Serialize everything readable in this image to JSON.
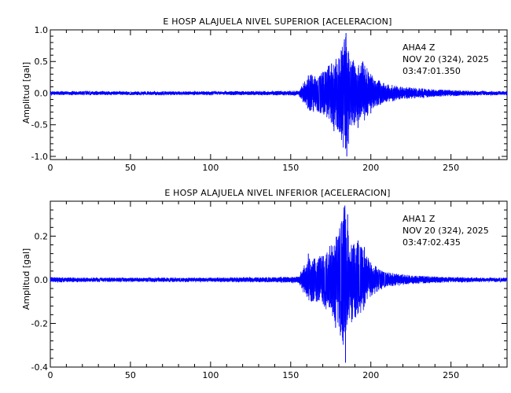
{
  "chart_data": [
    {
      "type": "line",
      "title": "E HOSP ALAJUELA NIVEL SUPERIOR [ACELERACION]",
      "ylabel": "Amplitud [gal]",
      "xlabel": "",
      "xlim": [
        0,
        285
      ],
      "ylim": [
        -1.05,
        1.0
      ],
      "xticks": [
        0,
        50,
        100,
        150,
        200,
        250
      ],
      "xtick_labels": [
        "0",
        "50",
        "100",
        "150",
        "200",
        "250"
      ],
      "yticks": [
        -1.0,
        -0.5,
        0.0,
        0.5,
        1.0
      ],
      "ytick_labels": [
        "-1.0",
        "-0.5",
        "0.0",
        "0.5",
        "1.0"
      ],
      "station": "AHA4   Z",
      "date": "NOV 20 (324), 2025",
      "time": "03:47:01.350",
      "grid": false,
      "series": [
        {
          "color": "#0000ff",
          "x": [
            0,
            30,
            60,
            100,
            140,
            155,
            160,
            163,
            166,
            170,
            175,
            178,
            180,
            182,
            183,
            184,
            185,
            186,
            187,
            188,
            190,
            192,
            195,
            200,
            205,
            210,
            220,
            230,
            240,
            250,
            260,
            270,
            285
          ],
          "envelope": [
            0.03,
            0.03,
            0.03,
            0.03,
            0.035,
            0.04,
            0.25,
            0.3,
            0.3,
            0.35,
            0.5,
            0.55,
            0.65,
            0.8,
            0.92,
            0.95,
            0.8,
            0.7,
            0.6,
            0.55,
            0.5,
            0.45,
            0.5,
            0.3,
            0.2,
            0.15,
            0.1,
            0.08,
            0.06,
            0.05,
            0.04,
            0.035,
            0.03
          ],
          "peaks": [
            [
              184.5,
              0.95
            ],
            [
              185.0,
              -1.0
            ],
            [
              183.5,
              0.85
            ],
            [
              186.0,
              -0.8
            ],
            [
              180.0,
              0.55
            ],
            [
              177.0,
              -0.6
            ],
            [
              195.0,
              0.5
            ],
            [
              192.0,
              -0.55
            ],
            [
              161.0,
              0.28
            ],
            [
              162.0,
              -0.28
            ],
            [
              205.0,
              0.2
            ],
            [
              200.0,
              -0.32
            ]
          ]
        }
      ]
    },
    {
      "type": "line",
      "title": "E HOSP ALAJUELA NIVEL INFERIOR [ACELERACION]",
      "ylabel": "Amplitud [gal]",
      "xlabel": "",
      "xlim": [
        0,
        285
      ],
      "ylim": [
        -0.4,
        0.36
      ],
      "xticks": [
        0,
        50,
        100,
        150,
        200,
        250
      ],
      "xtick_labels": [
        "0",
        "50",
        "100",
        "150",
        "200",
        "250"
      ],
      "yticks": [
        -0.4,
        -0.2,
        0.0,
        0.2
      ],
      "ytick_labels": [
        "-0.4",
        "-0.2",
        "0.0",
        "0.2"
      ],
      "station": "AHA1   Z",
      "date": "NOV 20 (324), 2025",
      "time": "03:47:02.435",
      "grid": false,
      "series": [
        {
          "color": "#0000ff",
          "x": [
            0,
            30,
            60,
            100,
            140,
            155,
            160,
            163,
            166,
            170,
            175,
            178,
            180,
            182,
            183,
            184,
            185,
            186,
            188,
            190,
            192,
            195,
            200,
            205,
            210,
            220,
            230,
            240,
            250,
            260,
            270,
            285
          ],
          "envelope": [
            0.012,
            0.01,
            0.01,
            0.01,
            0.012,
            0.015,
            0.09,
            0.1,
            0.1,
            0.12,
            0.16,
            0.2,
            0.22,
            0.3,
            0.33,
            0.34,
            0.25,
            0.22,
            0.2,
            0.18,
            0.17,
            0.15,
            0.08,
            0.05,
            0.035,
            0.025,
            0.018,
            0.015,
            0.012,
            0.012,
            0.01,
            0.01
          ],
          "peaks": [
            [
              183.8,
              0.34
            ],
            [
              184.2,
              -0.38
            ],
            [
              185.5,
              0.3
            ],
            [
              182.5,
              -0.28
            ],
            [
              180.0,
              0.2
            ],
            [
              178.0,
              -0.22
            ],
            [
              192.0,
              0.18
            ],
            [
              190.0,
              -0.17
            ],
            [
              161.0,
              0.12
            ],
            [
              163.0,
              -0.1
            ],
            [
              196.0,
              0.15
            ]
          ]
        }
      ]
    }
  ]
}
